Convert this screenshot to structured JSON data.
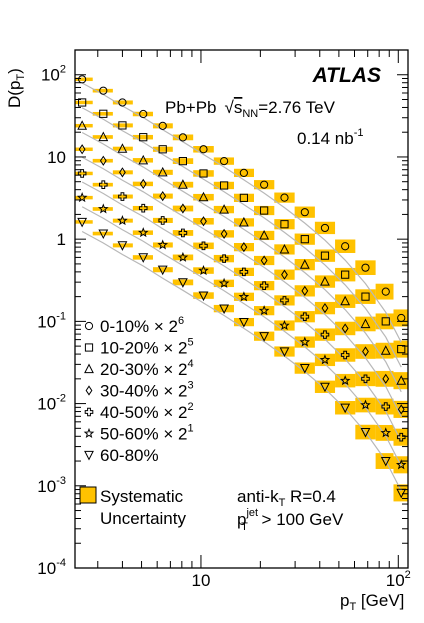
{
  "chart_data": {
    "type": "scatter",
    "experiment": "ATLAS",
    "collision_prefix": "Pb+Pb",
    "energy_sqrt": "s",
    "energy_sub": "NN",
    "energy_value": "=2.76 TeV",
    "lumi_base": "0.14 nb",
    "lumi_sup": "-1",
    "ylabel_main": "D(p",
    "ylabel_sub": "T",
    "ylabel_close": ")",
    "xlabel_main": "p",
    "xlabel_sub": "T",
    "xlabel_unit": " [GeV]",
    "x_scale": "log",
    "y_scale": "log",
    "xlim": [
      2.3,
      112
    ],
    "ylim": [
      0.0001,
      200
    ],
    "x_ticks": [
      {
        "value": 10,
        "base": "10",
        "exp": ""
      },
      {
        "value": 100,
        "base": "10",
        "exp": "2"
      }
    ],
    "y_ticks": [
      {
        "value": 0.0001,
        "base": "10",
        "exp": "-4"
      },
      {
        "value": 0.001,
        "base": "10",
        "exp": "-3"
      },
      {
        "value": 0.01,
        "base": "10",
        "exp": "-2"
      },
      {
        "value": 0.1,
        "base": "10",
        "exp": "-1"
      },
      {
        "value": 1,
        "base": "1",
        "exp": ""
      },
      {
        "value": 10,
        "base": "10",
        "exp": ""
      },
      {
        "value": 100,
        "base": "10",
        "exp": "2"
      }
    ],
    "x": [
      2.5,
      3.2,
      4.0,
      5.1,
      6.4,
      8.1,
      10.3,
      13.1,
      16.5,
      20.9,
      26.5,
      33.6,
      42.5,
      53.8,
      68.2,
      86.4,
      103.5
    ],
    "reference_shape": [
      0.4,
      0.29,
      0.21,
      0.152,
      0.108,
      0.077,
      0.054,
      0.038,
      0.0265,
      0.0183,
      0.0122,
      0.0079,
      0.0049,
      0.0028,
      0.00145,
      0.00065,
      0.00028
    ],
    "series": [
      {
        "label": "0-10%",
        "scale": "2",
        "scale_exp": "6",
        "marker": "circle",
        "multiplier": 64,
        "values": [
          88,
          64,
          46,
          33.3,
          23.9,
          17.3,
          12.4,
          8.9,
          6.4,
          4.6,
          3.2,
          2.13,
          1.37,
          0.82,
          0.45,
          0.23,
          0.11
        ]
      },
      {
        "label": "10-20%",
        "scale": "2",
        "scale_exp": "5",
        "marker": "square",
        "multiplier": 32,
        "values": [
          46,
          33.5,
          24.2,
          17.4,
          12.4,
          8.9,
          6.3,
          4.5,
          3.18,
          2.23,
          1.52,
          1.0,
          0.63,
          0.37,
          0.2,
          0.1,
          0.046
        ]
      },
      {
        "label": "20-30%",
        "scale": "2",
        "scale_exp": "4",
        "marker": "triangle",
        "multiplier": 16,
        "values": [
          24,
          17.5,
          12.6,
          9.1,
          6.5,
          4.6,
          3.24,
          2.29,
          1.6,
          1.11,
          0.75,
          0.49,
          0.305,
          0.176,
          0.093,
          0.044,
          0.019
        ]
      },
      {
        "label": "30-40%",
        "scale": "2",
        "scale_exp": "3",
        "marker": "diamond",
        "multiplier": 8,
        "values": [
          12.4,
          9.0,
          6.5,
          4.7,
          3.34,
          2.36,
          1.65,
          1.16,
          0.8,
          0.55,
          0.37,
          0.235,
          0.145,
          0.082,
          0.043,
          0.02,
          0.0085
        ]
      },
      {
        "label": "40-50%",
        "scale": "2",
        "scale_exp": "2",
        "marker": "cross",
        "multiplier": 4,
        "values": [
          6.3,
          4.6,
          3.3,
          2.38,
          1.69,
          1.19,
          0.83,
          0.58,
          0.4,
          0.272,
          0.18,
          0.114,
          0.069,
          0.039,
          0.02,
          0.0092,
          0.0039
        ]
      },
      {
        "label": "50-60%",
        "scale": "2",
        "scale_exp": "1",
        "marker": "star",
        "multiplier": 2,
        "values": [
          3.2,
          2.33,
          1.68,
          1.2,
          0.85,
          0.6,
          0.415,
          0.29,
          0.199,
          0.135,
          0.089,
          0.056,
          0.034,
          0.019,
          0.0096,
          0.0044,
          0.0018
        ]
      },
      {
        "label": "60-80%",
        "scale": "",
        "scale_exp": "",
        "marker": "triangle-down",
        "multiplier": 1,
        "values": [
          1.62,
          1.17,
          0.84,
          0.6,
          0.425,
          0.298,
          0.206,
          0.143,
          0.098,
          0.066,
          0.043,
          0.027,
          0.016,
          0.0089,
          0.0045,
          0.002,
          0.00082
        ]
      }
    ],
    "systematics_label_1": "Systematic",
    "systematics_label_2": "Uncertainty",
    "annotation_jet_1_base": "anti-k",
    "annotation_jet_1_sub": "T",
    "annotation_jet_1_rest": " R=0.4",
    "annotation_jet_2_base": "p",
    "annotation_jet_2_sup": "jet",
    "annotation_jet_2_sub": "T",
    "annotation_jet_2_rest": " > 100 GeV",
    "colors": {
      "band": "#FFC200",
      "line": "#b8b8b8",
      "axis": "#000000"
    }
  }
}
